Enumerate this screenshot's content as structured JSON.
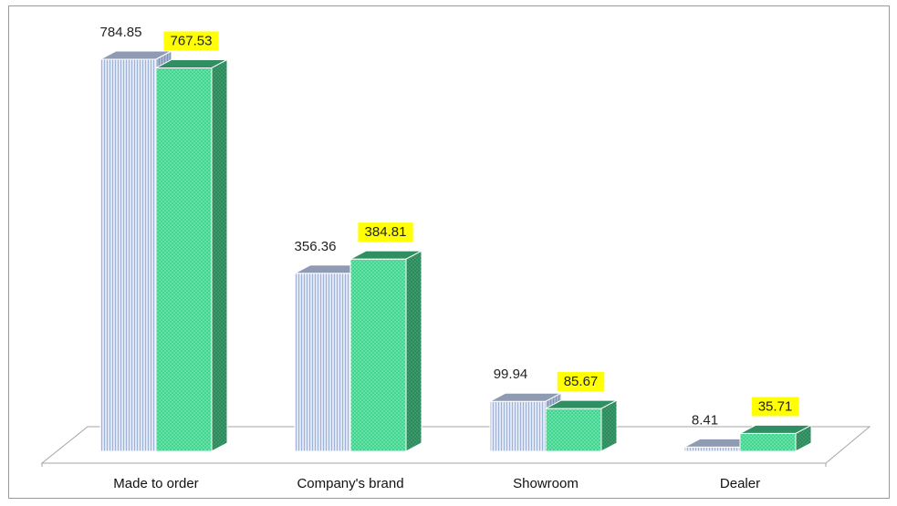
{
  "chart_data": {
    "type": "bar",
    "categories": [
      "Made to order",
      "Company's brand",
      "Showroom",
      "Dealer"
    ],
    "series": [
      {
        "values": [
          784.85,
          356.36,
          99.94,
          8.41
        ],
        "color": "#c9d6ee",
        "label_highlight": ""
      },
      {
        "values": [
          767.53,
          384.81,
          85.67,
          35.71
        ],
        "color": "#33cc85",
        "label_highlight": "#ffff00"
      }
    ],
    "style": "3d-clustered-column",
    "legend": "none",
    "grid": false
  }
}
